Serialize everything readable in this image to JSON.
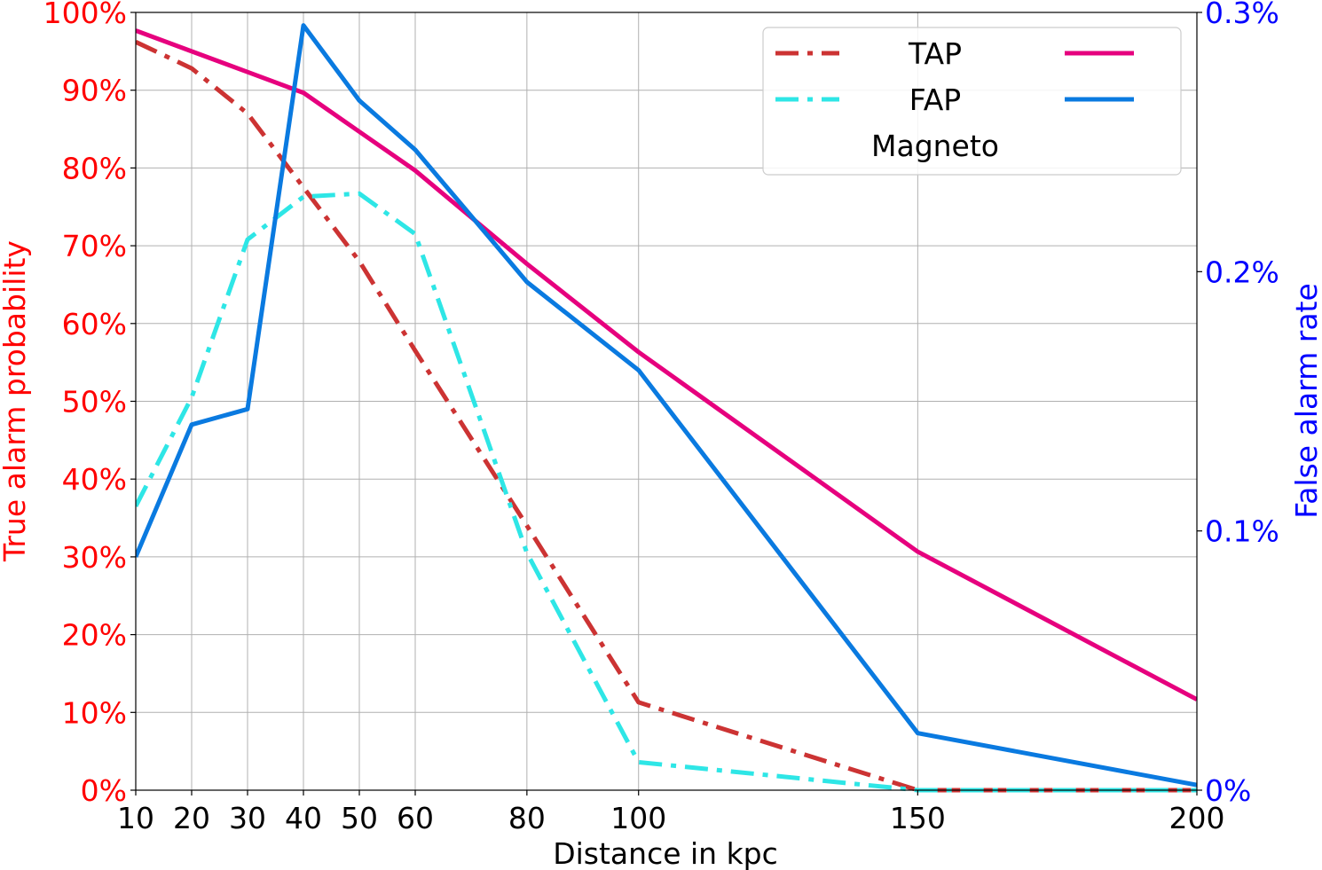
{
  "chart_data": {
    "type": "line",
    "xlabel": "Distance in kpc",
    "ylabel_left": "True alarm probability",
    "ylabel_right": "False alarm rate",
    "x_ticks": [
      10,
      20,
      30,
      40,
      50,
      60,
      80,
      100,
      150,
      200
    ],
    "x_tick_labels": [
      "10",
      "20",
      "30",
      "40",
      "50",
      "60",
      "80",
      "100",
      "150",
      "200"
    ],
    "left_ylim": [
      0,
      100
    ],
    "left_tick_values": [
      0,
      10,
      20,
      30,
      40,
      50,
      60,
      70,
      80,
      90,
      100
    ],
    "left_tick_labels": [
      "0%",
      "10%",
      "20%",
      "30%",
      "40%",
      "50%",
      "60%",
      "70%",
      "80%",
      "90%",
      "100%"
    ],
    "right_ylim": [
      0,
      0.3
    ],
    "right_tick_values": [
      0,
      0.1,
      0.2,
      0.3
    ],
    "right_tick_labels": [
      "0%",
      "0.1%",
      "0.2%",
      "0.3%"
    ],
    "grid": true,
    "legend": {
      "placement": "top-right",
      "headers": [
        "TAP",
        "FAP"
      ],
      "row_label": "Magneto"
    },
    "series": [
      {
        "legend_row": 0,
        "axis": "left",
        "style": "dashdot",
        "color": "#cc3333",
        "x": [
          10,
          20,
          30,
          40,
          50,
          60,
          80,
          100,
          150,
          200
        ],
        "y": [
          96.2,
          92.8,
          87,
          77.5,
          68,
          56.5,
          34,
          11.3,
          0,
          0
        ]
      },
      {
        "legend_row": 1,
        "axis": "left",
        "style": "dashdot",
        "color": "#2ee6e6",
        "x": [
          10,
          20,
          30,
          40,
          50,
          60,
          80,
          100,
          150,
          200
        ],
        "y": [
          36.5,
          50.5,
          70.8,
          76.3,
          76.7,
          71.5,
          30.5,
          3.6,
          0,
          0
        ]
      },
      {
        "legend_row": 0,
        "axis": "right",
        "style": "solid",
        "color": "#e6007e",
        "x": [
          10,
          20,
          30,
          40,
          50,
          60,
          80,
          100,
          150,
          200
        ],
        "y": [
          0.293,
          0.285,
          0.277,
          0.269,
          0.254,
          0.239,
          0.203,
          0.169,
          0.092,
          0.035
        ]
      },
      {
        "legend_row": 1,
        "axis": "right",
        "style": "solid",
        "color": "#0a7ae0",
        "x": [
          10,
          20,
          30,
          40,
          50,
          60,
          80,
          100,
          150,
          200
        ],
        "y": [
          0.09,
          0.141,
          0.147,
          0.295,
          0.266,
          0.247,
          0.196,
          0.162,
          0.022,
          0.002
        ]
      }
    ]
  }
}
